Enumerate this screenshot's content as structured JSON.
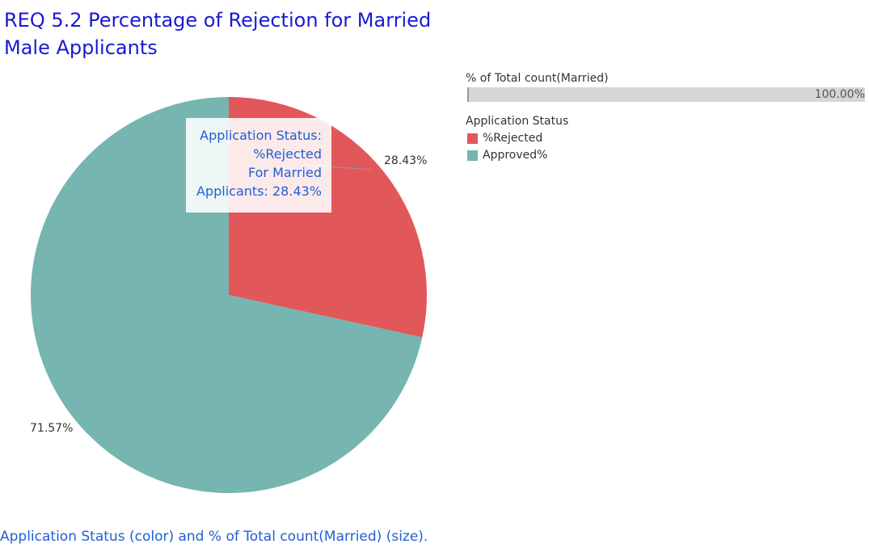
{
  "title_lines": [
    "REQ 5.2 Percentage of Rejection for Married",
    "Male Applicants"
  ],
  "tooltip_lines": [
    "Application Status:",
    "%Rejected",
    "For Married",
    "Applicants: 28.43%"
  ],
  "total_count": {
    "label": "% of Total count(Married)",
    "value_label": "100.00%",
    "value": 100.0
  },
  "legend": {
    "title": "Application Status",
    "items": [
      {
        "label": "%Rejected",
        "color": "#e1575a"
      },
      {
        "label": "Approved%",
        "color": "#76b5b0"
      }
    ]
  },
  "caption": "Application Status (color) and % of Total count(Married) (size).",
  "chart_data": {
    "type": "pie",
    "labels": [
      "%Rejected",
      "Approved%"
    ],
    "values": [
      28.43,
      71.57
    ],
    "value_labels": [
      "28.43%",
      "71.57%"
    ],
    "colors": [
      "#e1575a",
      "#76b5b0"
    ],
    "start": "12 o'clock",
    "direction": "clockwise"
  }
}
